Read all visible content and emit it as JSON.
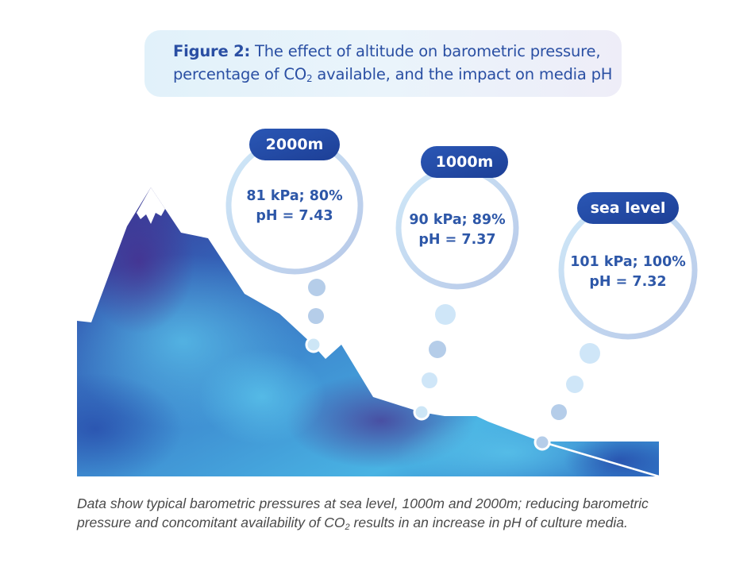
{
  "figure": {
    "label": "Figure 2:",
    "title_part1": " The effect of altitude on barometric pressure,",
    "title_part2": "percentage of CO",
    "title_sub": "2",
    "title_part3": " available, and the impact on media pH"
  },
  "altitudes": [
    {
      "name": "2000m",
      "line1": "81 kPa; 80%",
      "line2": "pH = 7.43"
    },
    {
      "name": "1000m",
      "line1": "90 kPa; 89%",
      "line2": "pH = 7.37"
    },
    {
      "name": "sea level",
      "line1": "101 kPa; 100%",
      "line2": "pH = 7.32"
    }
  ],
  "caption": {
    "part1": "Data show typical barometric pressures at sea level, 1000m and 2000m; reducing barometric pressure and concomitant availability of CO",
    "sub": "2",
    "part2": " results in an increase in pH of culture media."
  },
  "colors": {
    "title_text": "#2a4fa3",
    "badge": "#2248a0",
    "value_text": "#2d57a8",
    "ring": "#b9d6ef",
    "mountain_dark": "#2a3c9a",
    "mountain_light": "#45aee0",
    "peak_purple": "#5a3a96"
  }
}
